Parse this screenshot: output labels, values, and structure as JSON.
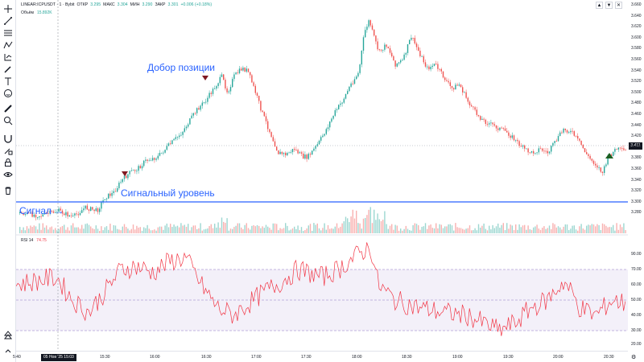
{
  "symbol": {
    "name": "LINEAR:ICPUSDT · 1 · Bybit",
    "open_label": "ОТКР",
    "open_value": "3.295",
    "high_label": "МАКС",
    "high_value": "3.304",
    "low_label": "МИН",
    "low_value": "3.290",
    "close_label": "ЗАКР",
    "close_value": "3.301",
    "change": "+0.006 (+0.18%)"
  },
  "volume": {
    "label": "Объём",
    "value": "15.892K"
  },
  "rsi": {
    "label": "RSI 14",
    "value": "74.75"
  },
  "annotations": {
    "add_position": "Добор позиции",
    "signal_level": "Сигнальный уровень",
    "signal": "Сигнал"
  },
  "price_axis": {
    "ticks": [
      "3.660",
      "3.640",
      "3.620",
      "3.600",
      "3.580",
      "3.560",
      "3.540",
      "3.520",
      "3.500",
      "3.480",
      "3.460",
      "3.440",
      "3.420",
      "3.400",
      "3.380",
      "3.360",
      "3.340",
      "3.320",
      "3.300",
      "3.280"
    ],
    "current": "3.411"
  },
  "rsi_axis": {
    "ticks": [
      "90.00",
      "70.00",
      "60.00",
      "50.00",
      "40.00",
      "30.00",
      "20.00"
    ]
  },
  "time_axis": {
    "ticks": [
      "5:40",
      "15:30",
      "16:00",
      "16:30",
      "17:00",
      "17:30",
      "18:00",
      "18:30",
      "19:00",
      "19:30",
      "20:00",
      "20:30"
    ],
    "crosshair_label": "05 Нов '25  15:03"
  },
  "toolbar": {
    "icons": [
      "crosshair-icon",
      "trendline-icon",
      "fib-icon",
      "pattern-icon",
      "projection-icon",
      "brush-icon",
      "text-icon",
      "emoji-icon",
      "ruler-icon",
      "zoom-icon",
      "magnet-icon",
      "lock-drawing-icon",
      "lock-icon",
      "eye-icon",
      "trash-icon",
      "tree-icon",
      "collapse-icon"
    ]
  },
  "controls": {
    "up": "▲",
    "down": "▼",
    "close": "✕"
  },
  "colors": {
    "up": "#26a69a",
    "down": "#ef5350",
    "level": "#2962ff",
    "rsi": "#f23645",
    "rsi_band": "#7e57c2"
  }
}
